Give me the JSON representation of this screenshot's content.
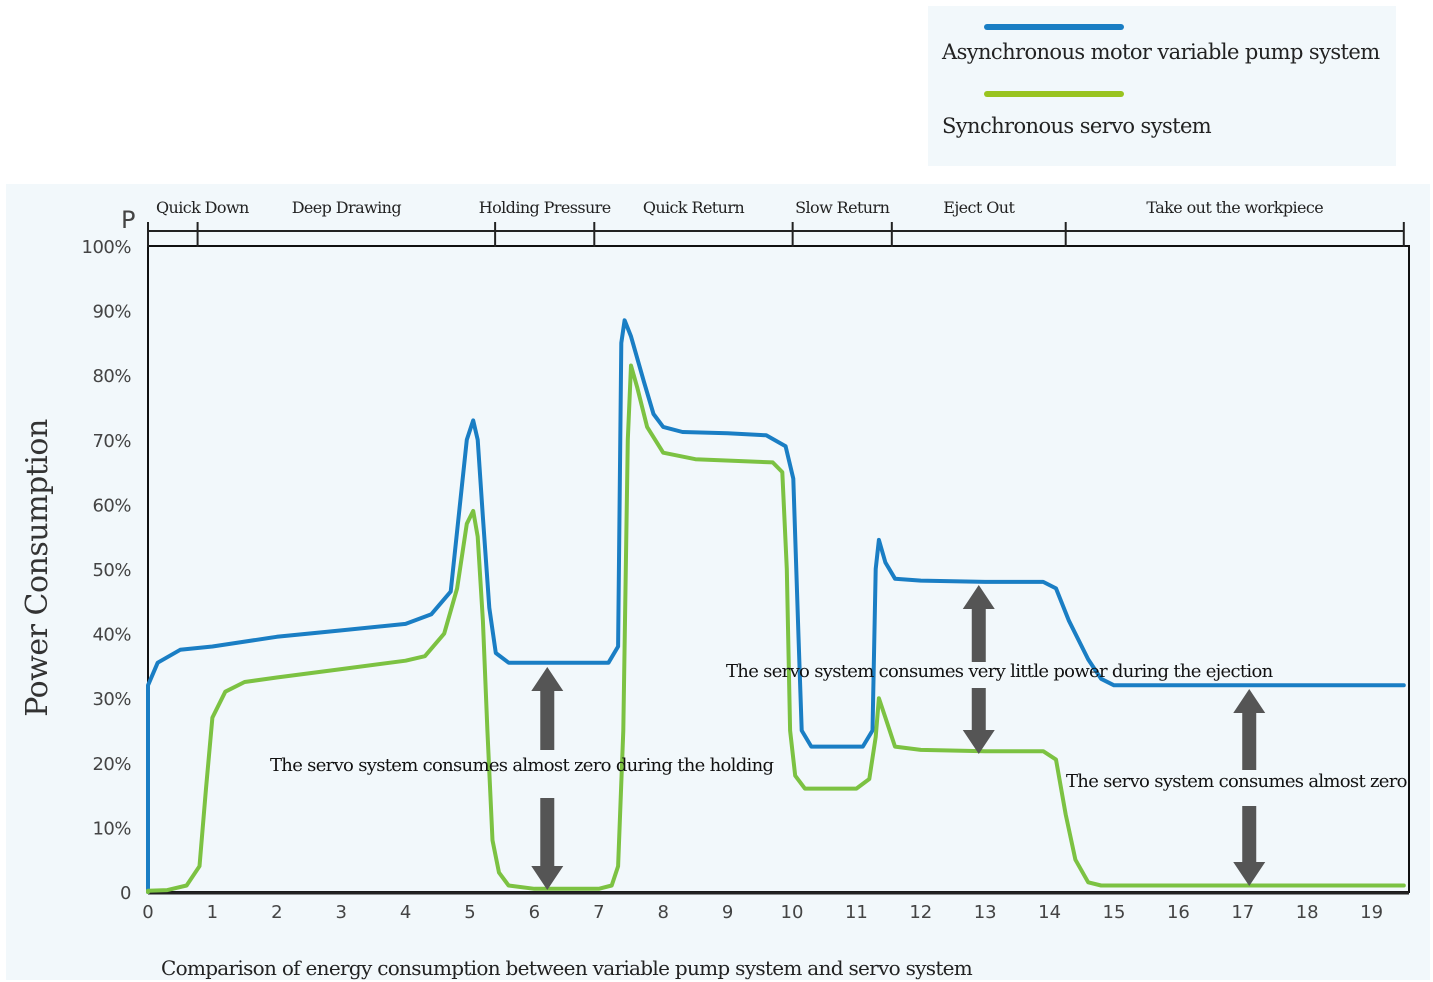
{
  "legend": {
    "items": [
      {
        "label": "Asynchronous motor variable pump system",
        "color": "#1a7ec4"
      },
      {
        "label": "Synchronous  servo system",
        "color": "#99c41f"
      }
    ]
  },
  "chart_data": {
    "type": "line",
    "title": "Comparison of energy consumption between variable pump system and servo system",
    "ylabel": "Power Consumption",
    "y_corner_label": "P",
    "xlabel": "",
    "xlim": [
      0,
      19.5
    ],
    "ylim": [
      0,
      100
    ],
    "x_ticks": [
      "0",
      "1",
      "2",
      "3",
      "4",
      "5",
      "6",
      "7",
      "8",
      "9",
      "10",
      "11",
      "12",
      "13",
      "14",
      "15",
      "16",
      "17",
      "18",
      "19"
    ],
    "y_ticks": [
      {
        "value": 0,
        "label": "0"
      },
      {
        "value": 10,
        "label": "10%"
      },
      {
        "value": 20,
        "label": "20%"
      },
      {
        "value": 30,
        "label": "30%"
      },
      {
        "value": 40,
        "label": "40%"
      },
      {
        "value": 50,
        "label": "50%"
      },
      {
        "value": 60,
        "label": "60%"
      },
      {
        "value": 70,
        "label": "70%"
      },
      {
        "value": 80,
        "label": "80%"
      },
      {
        "value": 90,
        "label": "90%"
      },
      {
        "value": 100,
        "label": "100%"
      }
    ],
    "phases": [
      {
        "label": "Quick Down",
        "start": 0,
        "end": 0.77
      },
      {
        "label": "Deep Drawing",
        "start": 0.77,
        "end": 5.39
      },
      {
        "label": "Holding Pressure",
        "start": 5.39,
        "end": 6.93
      },
      {
        "label": "Quick Return",
        "start": 6.93,
        "end": 10.01
      },
      {
        "label": "Slow Return",
        "start": 10.01,
        "end": 11.55
      },
      {
        "label": "Eject Out",
        "start": 11.55,
        "end": 14.25
      },
      {
        "label": "Take out the workpiece",
        "start": 14.25,
        "end": 19.5
      }
    ],
    "series": [
      {
        "name": "Asynchronous motor variable pump system",
        "color": "#1a7ec4",
        "points": [
          [
            0,
            0
          ],
          [
            0,
            32
          ],
          [
            0.15,
            35.5
          ],
          [
            0.5,
            37.5
          ],
          [
            1,
            38
          ],
          [
            2,
            39.5
          ],
          [
            3,
            40.5
          ],
          [
            4,
            41.5
          ],
          [
            4.4,
            43
          ],
          [
            4.7,
            46.5
          ],
          [
            4.95,
            70
          ],
          [
            5.05,
            73
          ],
          [
            5.12,
            70
          ],
          [
            5.2,
            58
          ],
          [
            5.3,
            44
          ],
          [
            5.4,
            37
          ],
          [
            5.6,
            35.5
          ],
          [
            7.15,
            35.5
          ],
          [
            7.3,
            38
          ],
          [
            7.35,
            85
          ],
          [
            7.4,
            88.5
          ],
          [
            7.5,
            86
          ],
          [
            7.7,
            79
          ],
          [
            7.85,
            74
          ],
          [
            8,
            72
          ],
          [
            8.3,
            71.2
          ],
          [
            9,
            71
          ],
          [
            9.6,
            70.7
          ],
          [
            9.9,
            69
          ],
          [
            10.02,
            64
          ],
          [
            10.1,
            40
          ],
          [
            10.15,
            25
          ],
          [
            10.3,
            22.5
          ],
          [
            11.1,
            22.5
          ],
          [
            11.25,
            25
          ],
          [
            11.3,
            50
          ],
          [
            11.35,
            54.5
          ],
          [
            11.45,
            51
          ],
          [
            11.6,
            48.5
          ],
          [
            12,
            48.2
          ],
          [
            13,
            48
          ],
          [
            13.9,
            48
          ],
          [
            14.1,
            47
          ],
          [
            14.3,
            42
          ],
          [
            14.6,
            36
          ],
          [
            14.8,
            33
          ],
          [
            15,
            32
          ],
          [
            19.5,
            32
          ]
        ]
      },
      {
        "name": "Synchronous  servo system",
        "color": "#7cc242",
        "points": [
          [
            0,
            0
          ],
          [
            0,
            0.2
          ],
          [
            0.3,
            0.3
          ],
          [
            0.6,
            1
          ],
          [
            0.8,
            4
          ],
          [
            0.9,
            16
          ],
          [
            1,
            27
          ],
          [
            1.2,
            31
          ],
          [
            1.5,
            32.5
          ],
          [
            2,
            33.2
          ],
          [
            3,
            34.5
          ],
          [
            4,
            35.8
          ],
          [
            4.3,
            36.5
          ],
          [
            4.6,
            40
          ],
          [
            4.8,
            47
          ],
          [
            4.95,
            57
          ],
          [
            5.05,
            59
          ],
          [
            5.12,
            55
          ],
          [
            5.2,
            42
          ],
          [
            5.27,
            25
          ],
          [
            5.35,
            8
          ],
          [
            5.45,
            3
          ],
          [
            5.6,
            1
          ],
          [
            6,
            0.5
          ],
          [
            7,
            0.5
          ],
          [
            7.2,
            1
          ],
          [
            7.3,
            4
          ],
          [
            7.38,
            25
          ],
          [
            7.45,
            70
          ],
          [
            7.5,
            81.5
          ],
          [
            7.6,
            78
          ],
          [
            7.75,
            72
          ],
          [
            8,
            68
          ],
          [
            8.5,
            67
          ],
          [
            9.7,
            66.5
          ],
          [
            9.85,
            65
          ],
          [
            9.92,
            50
          ],
          [
            9.97,
            25
          ],
          [
            10.05,
            18
          ],
          [
            10.2,
            16
          ],
          [
            11,
            16
          ],
          [
            11.2,
            17.5
          ],
          [
            11.3,
            24
          ],
          [
            11.35,
            30
          ],
          [
            11.45,
            27
          ],
          [
            11.6,
            22.5
          ],
          [
            12,
            22
          ],
          [
            13,
            21.8
          ],
          [
            13.9,
            21.8
          ],
          [
            14.1,
            20.5
          ],
          [
            14.25,
            12
          ],
          [
            14.4,
            5
          ],
          [
            14.6,
            1.5
          ],
          [
            14.8,
            1
          ],
          [
            19.5,
            1
          ]
        ]
      }
    ],
    "annotations": [
      {
        "text": "The servo system consumes almost zero  during the holding",
        "x": 6.2
      },
      {
        "text": "The servo system consumes very little power during the ejection",
        "x": 12.9
      },
      {
        "text": "The servo system consumes almost zero",
        "x": 17.1
      }
    ]
  }
}
